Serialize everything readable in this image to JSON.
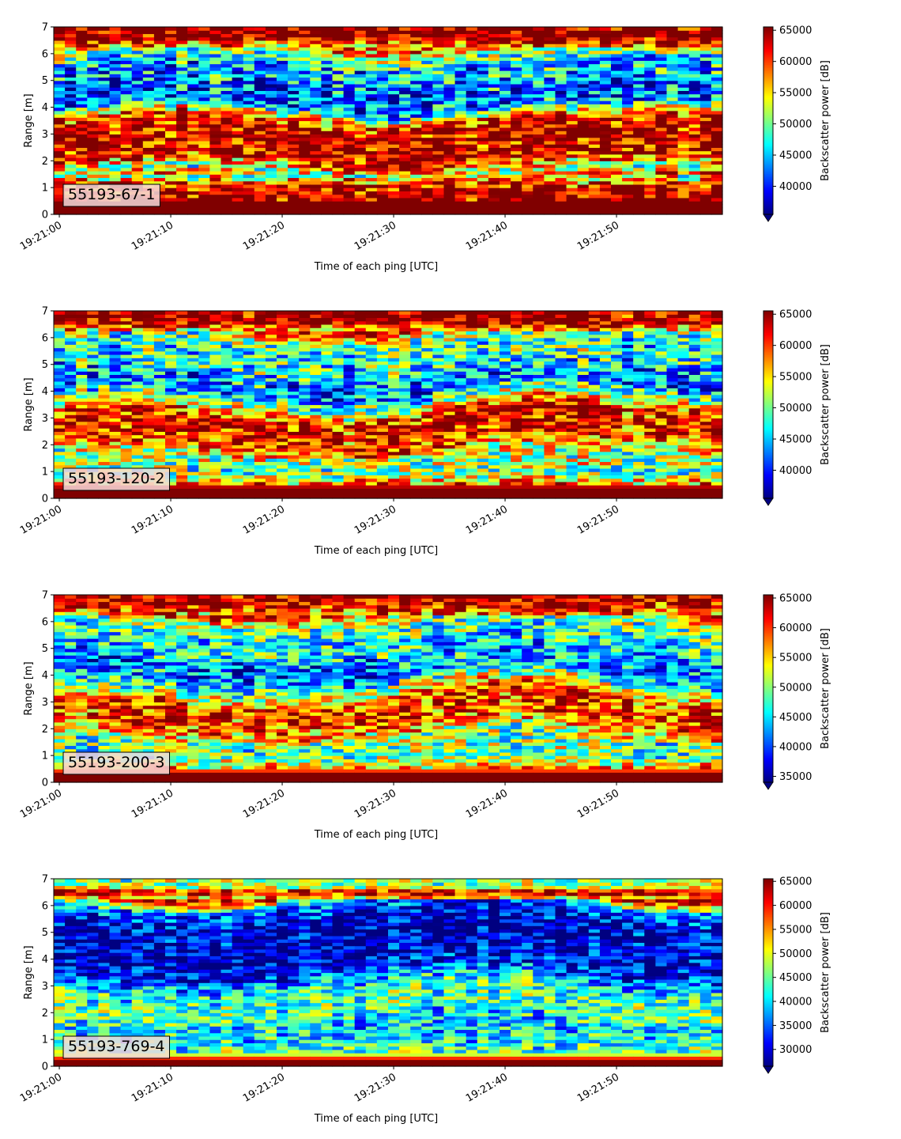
{
  "chart_data": [
    {
      "type": "heatmap",
      "label": "55193-67-1",
      "xlabel": "Time of each ping [UTC]",
      "ylabel": "Range [m]",
      "x_ticks": [
        "19:21:00",
        "19:21:10",
        "19:21:20",
        "19:21:30",
        "19:21:40",
        "19:21:50"
      ],
      "x_range_seconds": [
        0,
        60
      ],
      "y_ticks": [
        0,
        1,
        2,
        3,
        4,
        5,
        6,
        7
      ],
      "ylim": [
        0,
        7
      ],
      "colorbar": {
        "label": "Backscatter power [dB]",
        "range": [
          35500,
          65535
        ],
        "ticks": [
          40000,
          45000,
          50000,
          55000,
          60000,
          65000
        ],
        "extend": "min"
      },
      "colormap": "jet",
      "profile": [
        [
          0,
          65535
        ],
        [
          0.25,
          65535
        ],
        [
          0.4,
          65535
        ],
        [
          0.75,
          65535
        ],
        [
          1.1,
          62000
        ],
        [
          1.5,
          51000
        ],
        [
          2.0,
          63000
        ],
        [
          3.0,
          64000
        ],
        [
          3.5,
          60000
        ],
        [
          4.0,
          43000
        ],
        [
          4.5,
          42000
        ],
        [
          5.0,
          45000
        ],
        [
          5.5,
          45000
        ],
        [
          6.0,
          52000
        ],
        [
          6.3,
          58000
        ],
        [
          6.6,
          65535
        ],
        [
          7.0,
          65535
        ]
      ]
    },
    {
      "type": "heatmap",
      "label": "55193-120-2",
      "xlabel": "Time of each ping [UTC]",
      "ylabel": "Range [m]",
      "x_ticks": [
        "19:21:00",
        "19:21:10",
        "19:21:20",
        "19:21:30",
        "19:21:40",
        "19:21:50"
      ],
      "x_range_seconds": [
        0,
        60
      ],
      "y_ticks": [
        0,
        1,
        2,
        3,
        4,
        5,
        6,
        7
      ],
      "ylim": [
        0,
        7
      ],
      "colorbar": {
        "label": "Backscatter power [dB]",
        "range": [
          35500,
          65535
        ],
        "ticks": [
          40000,
          45000,
          50000,
          55000,
          60000,
          65000
        ],
        "extend": "min"
      },
      "colormap": "jet",
      "profile": [
        [
          0,
          65535
        ],
        [
          0.25,
          65535
        ],
        [
          0.4,
          65535
        ],
        [
          0.6,
          56000
        ],
        [
          1.0,
          50000
        ],
        [
          1.5,
          52000
        ],
        [
          2.0,
          60000
        ],
        [
          2.5,
          62000
        ],
        [
          3.0,
          62000
        ],
        [
          3.5,
          52000
        ],
        [
          4.0,
          43000
        ],
        [
          4.5,
          44000
        ],
        [
          5.0,
          48000
        ],
        [
          5.5,
          47000
        ],
        [
          6.0,
          50000
        ],
        [
          6.3,
          56000
        ],
        [
          6.6,
          65535
        ],
        [
          7.0,
          65535
        ]
      ]
    },
    {
      "type": "heatmap",
      "label": "55193-200-3",
      "xlabel": "Time of each ping [UTC]",
      "ylabel": "Range [m]",
      "x_ticks": [
        "19:21:00",
        "19:21:10",
        "19:21:20",
        "19:21:30",
        "19:21:40",
        "19:21:50"
      ],
      "x_range_seconds": [
        0,
        60
      ],
      "y_ticks": [
        0,
        1,
        2,
        3,
        4,
        5,
        6,
        7
      ],
      "ylim": [
        0,
        7
      ],
      "colorbar": {
        "label": "Backscatter power [dB]",
        "range": [
          34000,
          65535
        ],
        "ticks": [
          35000,
          40000,
          45000,
          50000,
          55000,
          60000,
          65000
        ],
        "extend": "min"
      },
      "colormap": "jet",
      "profile": [
        [
          0,
          65535
        ],
        [
          0.15,
          65535
        ],
        [
          0.35,
          65535
        ],
        [
          0.5,
          56000
        ],
        [
          1.0,
          48000
        ],
        [
          1.5,
          50000
        ],
        [
          2.0,
          58000
        ],
        [
          2.5,
          60000
        ],
        [
          3.0,
          60000
        ],
        [
          3.5,
          50000
        ],
        [
          4.0,
          42000
        ],
        [
          4.5,
          42000
        ],
        [
          5.0,
          46000
        ],
        [
          5.5,
          47000
        ],
        [
          6.0,
          50000
        ],
        [
          6.3,
          57000
        ],
        [
          6.6,
          63000
        ],
        [
          7.0,
          65535
        ]
      ]
    },
    {
      "type": "heatmap",
      "label": "55193-769-4",
      "xlabel": "Time of each ping [UTC]",
      "ylabel": "Range [m]",
      "x_ticks": [
        "19:21:00",
        "19:21:10",
        "19:21:20",
        "19:21:30",
        "19:21:40",
        "19:21:50"
      ],
      "x_range_seconds": [
        0,
        60
      ],
      "y_ticks": [
        0,
        1,
        2,
        3,
        4,
        5,
        6,
        7
      ],
      "ylim": [
        0,
        7
      ],
      "colorbar": {
        "label": "Backscatter power [dB]",
        "range": [
          26500,
          65535
        ],
        "ticks": [
          30000,
          35000,
          40000,
          45000,
          50000,
          55000,
          60000,
          65000
        ],
        "extend": "min"
      },
      "colormap": "jet",
      "profile": [
        [
          0,
          65535
        ],
        [
          0.2,
          65535
        ],
        [
          0.3,
          60000
        ],
        [
          0.5,
          44000
        ],
        [
          1.0,
          40000
        ],
        [
          1.5,
          40000
        ],
        [
          2.0,
          44000
        ],
        [
          2.5,
          44000
        ],
        [
          3.0,
          40000
        ],
        [
          3.5,
          32000
        ],
        [
          4.0,
          29000
        ],
        [
          5.0,
          29000
        ],
        [
          5.5,
          30000
        ],
        [
          6.0,
          36000
        ],
        [
          6.3,
          52000
        ],
        [
          6.5,
          65535
        ],
        [
          6.7,
          48000
        ],
        [
          7.0,
          46000
        ]
      ]
    }
  ]
}
